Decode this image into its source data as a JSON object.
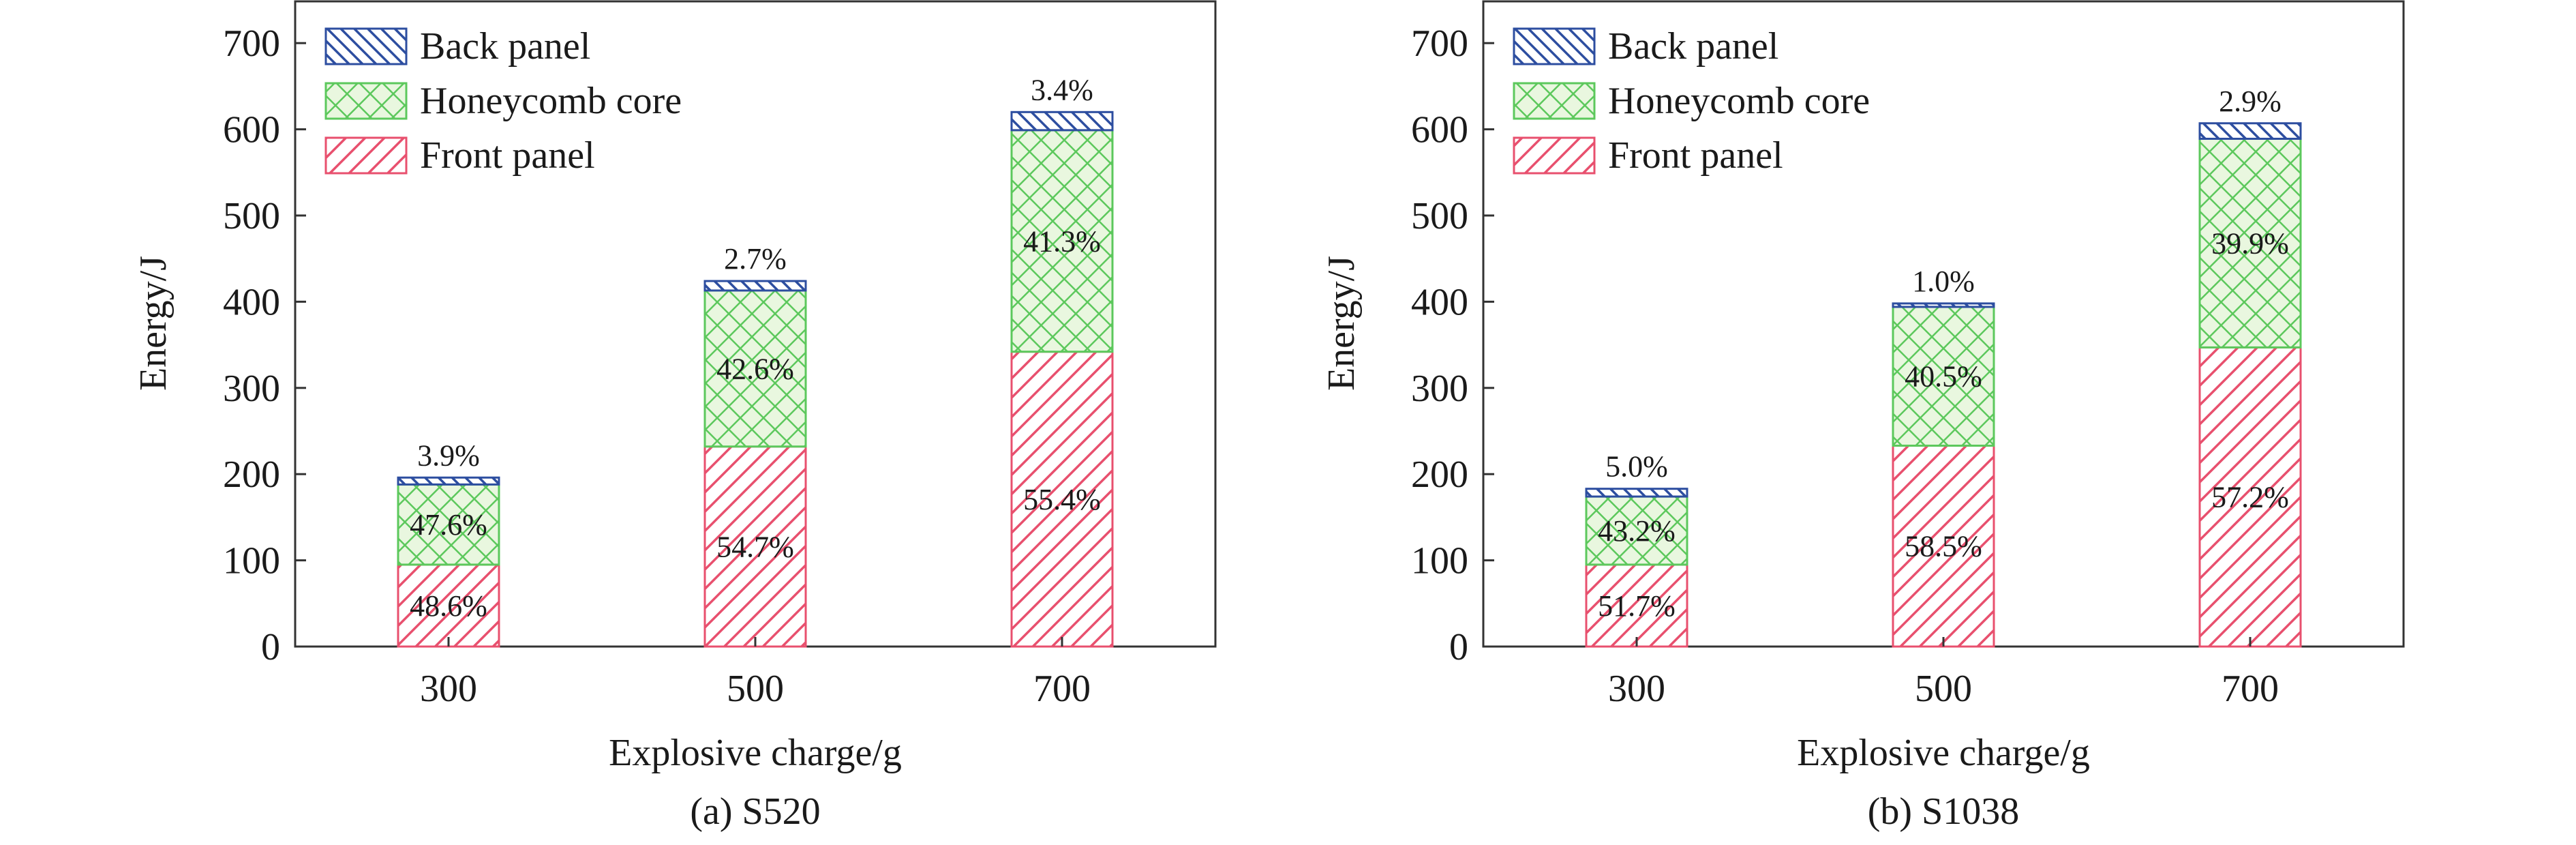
{
  "chart_data": [
    {
      "type": "bar",
      "stacked": true,
      "caption": "(a) S520",
      "xlabel": "Explosive charge/g",
      "ylabel": "Energy/J",
      "ylim": [
        0,
        750
      ],
      "yticks": [
        0,
        100,
        200,
        300,
        400,
        500,
        600,
        700
      ],
      "categories": [
        "300",
        "500",
        "700"
      ],
      "legend_position": "top-left",
      "series": [
        {
          "name": "Front panel",
          "color": "#e8506e",
          "pattern": "diagonal-hatch",
          "values": [
            95,
            232,
            342
          ],
          "labels": [
            "48.6%",
            "54.7%",
            "55.4%"
          ]
        },
        {
          "name": "Honeycomb core",
          "color": "#5cc85c",
          "pattern": "crosshatch",
          "values": [
            93,
            181,
            257
          ],
          "labels": [
            "47.6%",
            "42.6%",
            "41.3%"
          ]
        },
        {
          "name": "Back panel",
          "color": "#2d4ea0",
          "pattern": "back-hatch",
          "values": [
            8,
            11,
            21
          ],
          "labels": [
            "3.9%",
            "2.7%",
            "3.4%"
          ]
        }
      ]
    },
    {
      "type": "bar",
      "stacked": true,
      "caption": "(b) S1038",
      "xlabel": "Explosive charge/g",
      "ylabel": "Energy/J",
      "ylim": [
        0,
        750
      ],
      "yticks": [
        0,
        100,
        200,
        300,
        400,
        500,
        600,
        700
      ],
      "categories": [
        "300",
        "500",
        "700"
      ],
      "legend_position": "top-left",
      "series": [
        {
          "name": "Front panel",
          "color": "#e8506e",
          "pattern": "diagonal-hatch",
          "values": [
            95,
            233,
            347
          ],
          "labels": [
            "51.7%",
            "58.5%",
            "57.2%"
          ]
        },
        {
          "name": "Honeycomb core",
          "color": "#5cc85c",
          "pattern": "crosshatch",
          "values": [
            79,
            161,
            242
          ],
          "labels": [
            "43.2%",
            "40.5%",
            "39.9%"
          ]
        },
        {
          "name": "Back panel",
          "color": "#2d4ea0",
          "pattern": "back-hatch",
          "values": [
            9,
            4,
            18
          ],
          "labels": [
            "5.0%",
            "1.0%",
            "2.9%"
          ]
        }
      ]
    }
  ]
}
